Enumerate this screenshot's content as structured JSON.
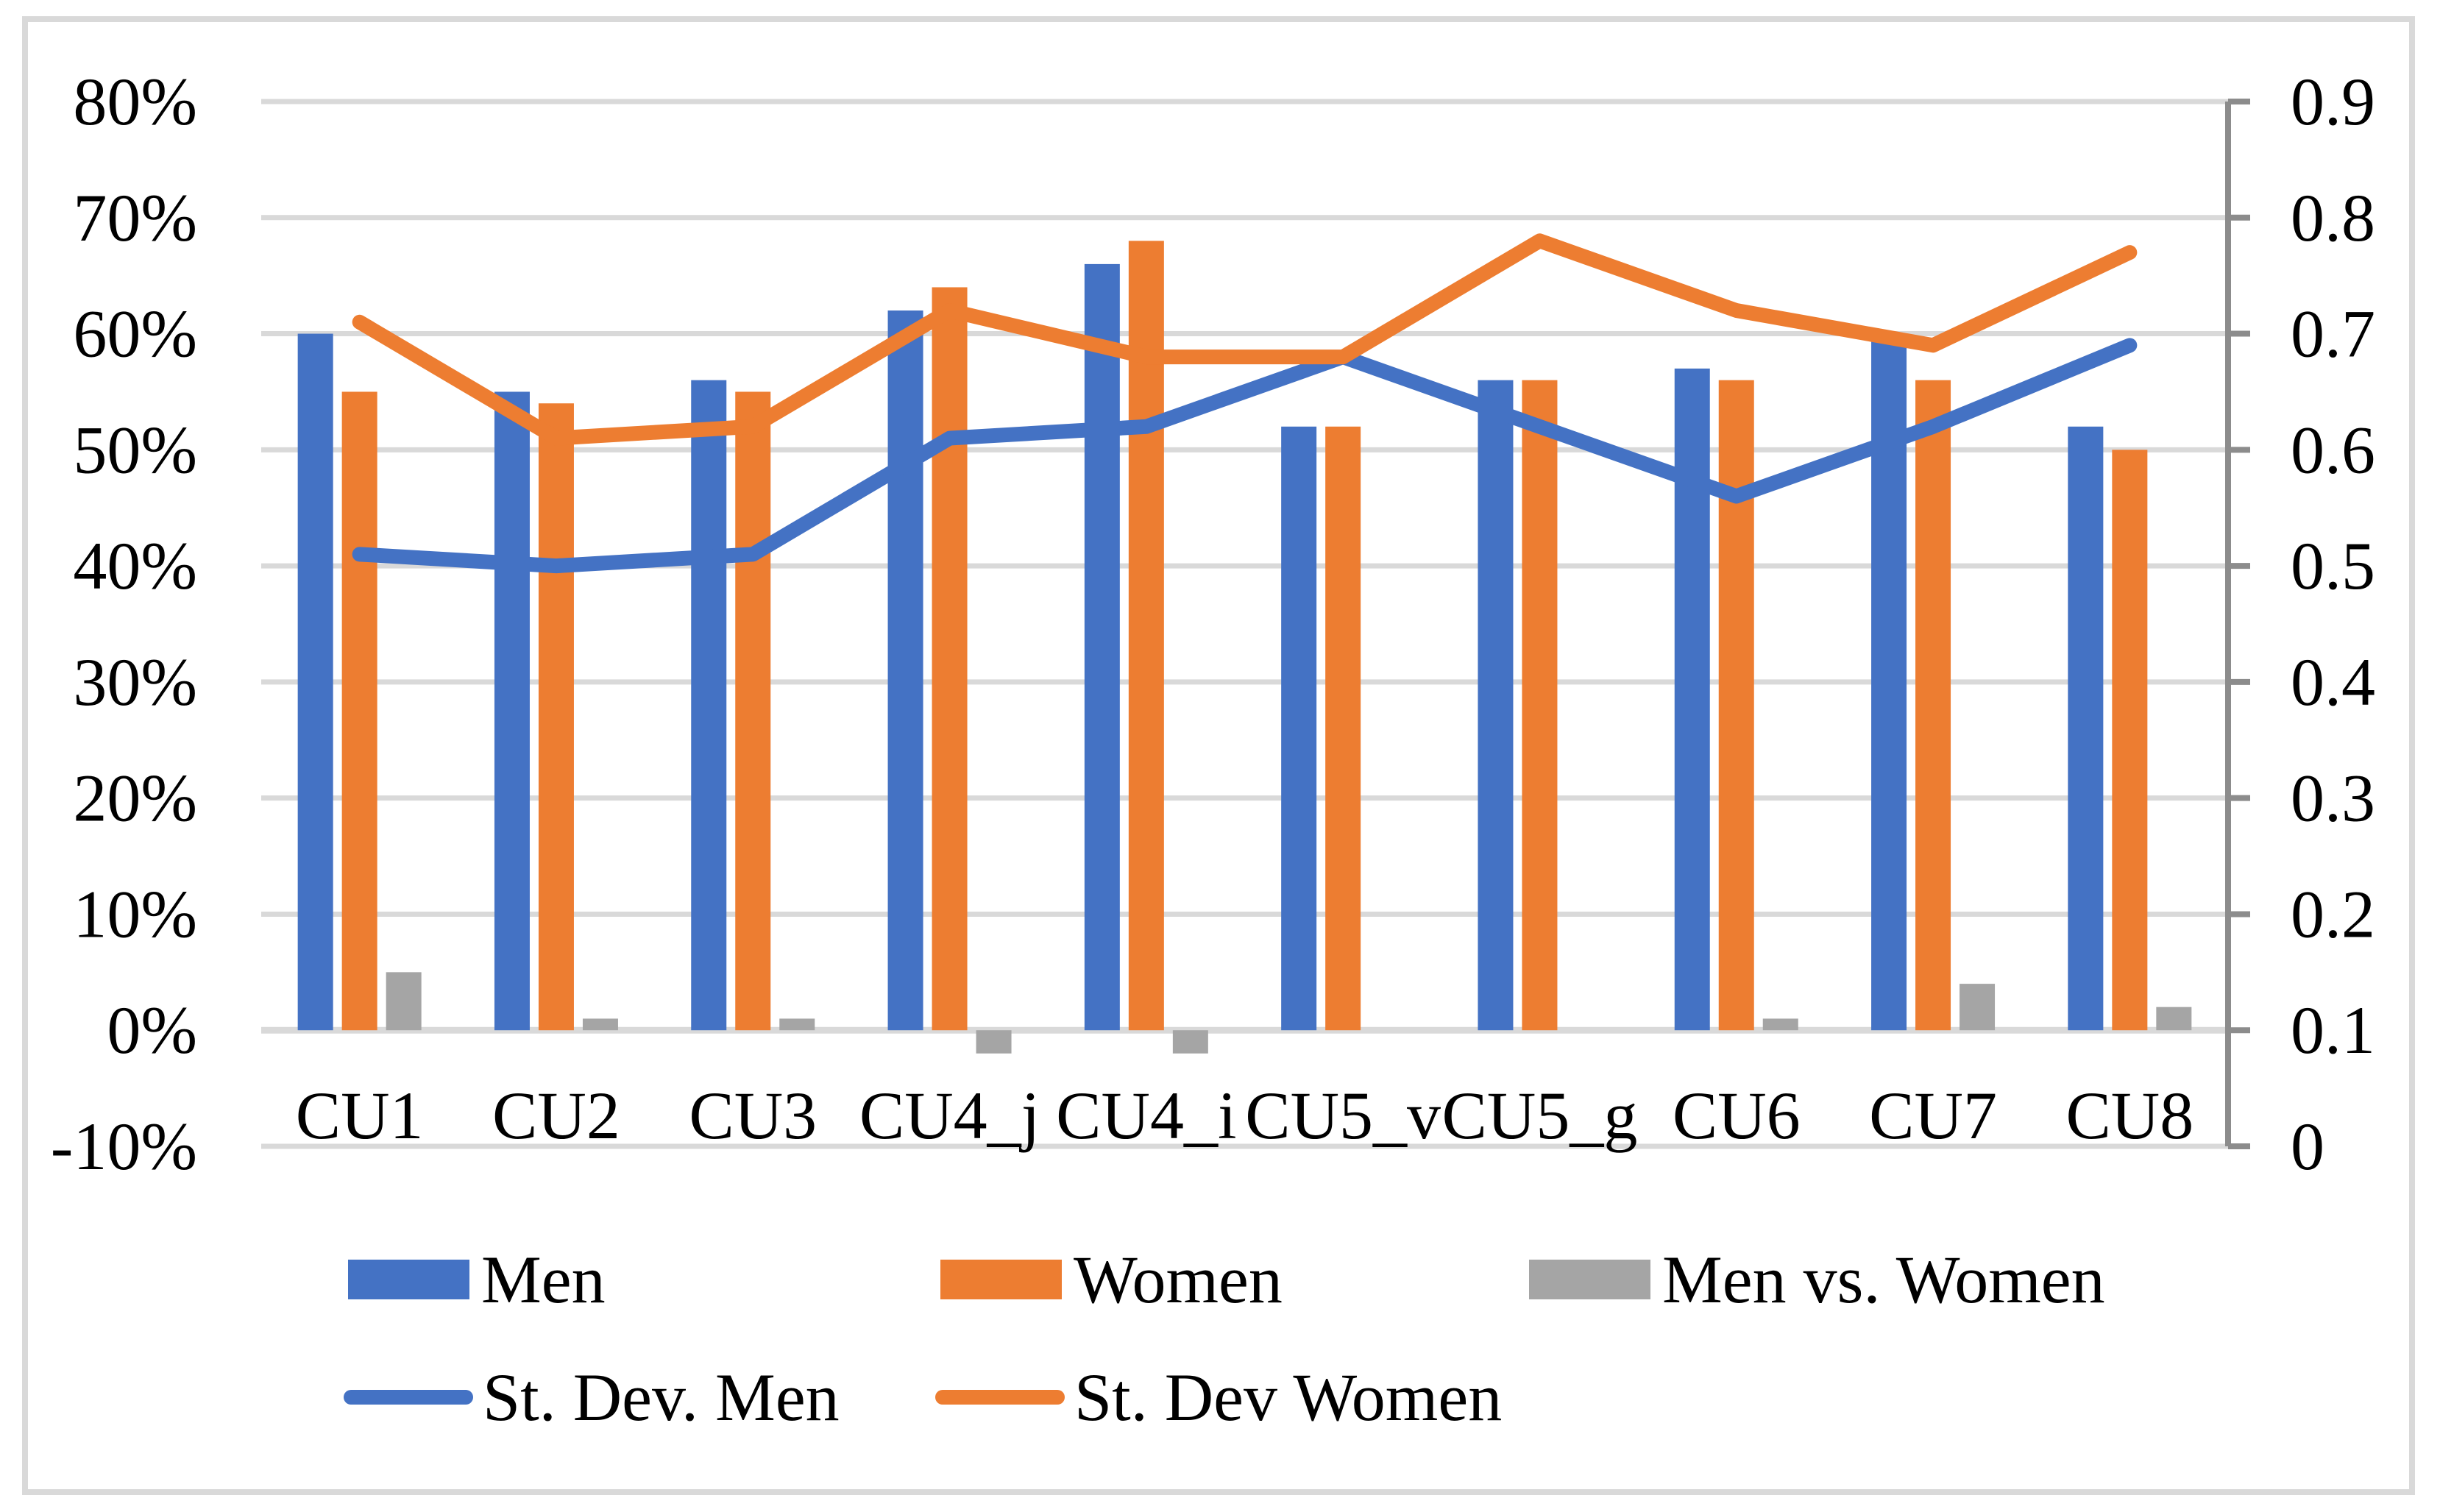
{
  "chart_data": {
    "type": "combo-bar-line",
    "categories": [
      "CU1",
      "CU2",
      "CU3",
      "CU4_j",
      "CU4_i",
      "CU5_v",
      "CU5_g",
      "CU6",
      "CU7",
      "CU8"
    ],
    "series": [
      {
        "name": "Men",
        "kind": "bar",
        "axis": "left",
        "color": "#4472C4",
        "values": [
          60,
          55,
          56,
          62,
          66,
          52,
          56,
          57,
          60,
          52
        ]
      },
      {
        "name": "Women",
        "kind": "bar",
        "axis": "left",
        "color": "#ED7D31",
        "values": [
          55,
          54,
          55,
          64,
          68,
          52,
          56,
          56,
          56,
          50
        ]
      },
      {
        "name": "Men vs. Women",
        "kind": "bar",
        "axis": "left",
        "color": "#A5A5A5",
        "values": [
          5,
          1,
          1,
          -2,
          -2,
          0,
          0,
          1,
          4,
          2
        ]
      },
      {
        "name": "St. Dev. Men",
        "kind": "line",
        "axis": "right",
        "color": "#4472C4",
        "values": [
          0.51,
          0.5,
          0.51,
          0.61,
          0.62,
          0.68,
          0.62,
          0.56,
          0.62,
          0.69
        ]
      },
      {
        "name": "St. Dev Women",
        "kind": "line",
        "axis": "right",
        "color": "#ED7D31",
        "values": [
          0.71,
          0.61,
          0.62,
          0.72,
          0.68,
          0.68,
          0.78,
          0.72,
          0.69,
          0.77
        ]
      }
    ],
    "left_axis": {
      "min": -10,
      "max": 80,
      "step": 10,
      "unit": "%",
      "tick_labels": [
        "80%",
        "70%",
        "60%",
        "50%",
        "40%",
        "30%",
        "20%",
        "10%",
        "0%",
        "-10%"
      ]
    },
    "right_axis": {
      "min": 0,
      "max": 0.9,
      "step": 0.1,
      "tick_labels": [
        "0.9",
        "0.8",
        "0.7",
        "0.6",
        "0.5",
        "0.4",
        "0.3",
        "0.2",
        "0.1",
        "0"
      ]
    },
    "grid": true,
    "legend_position": "bottom",
    "legend_rows": [
      [
        "Men",
        "Women",
        "Men vs. Women"
      ],
      [
        "St. Dev. Men",
        "St. Dev Women"
      ]
    ],
    "colors": {
      "gridline": "#D9D9D9",
      "axis_line": "#8C8C8C",
      "text": "#000000",
      "background": "#FFFFFF"
    }
  }
}
